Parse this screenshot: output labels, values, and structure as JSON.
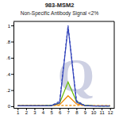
{
  "chart_data": {
    "type": "line",
    "title": "983-MSM2",
    "subtitle": "Non-Specific Antibody Signal <2%",
    "annotations": [
      {
        "text": "Q",
        "color": "#cdd0e3"
      }
    ],
    "x": [
      1,
      2,
      3,
      4,
      5,
      6,
      7,
      8,
      9,
      10,
      11,
      12
    ],
    "xlim": [
      0.5,
      12.5
    ],
    "xticks": [
      1,
      2,
      3,
      4,
      5,
      6,
      7,
      8,
      9,
      10,
      11,
      12
    ],
    "ylim": [
      -0.02,
      1.05
    ],
    "yticks": [
      0,
      {
        "value": 0.2,
        "label": ".2"
      },
      {
        "value": 0.4,
        "label": ".4"
      },
      {
        "value": 0.6,
        "label": ".6"
      },
      {
        "value": 0.8,
        "label": ".8"
      },
      1
    ],
    "grid": false,
    "series": [
      {
        "color": "#3344bb",
        "line_style": "dashed",
        "values": [
          0.005,
          0.005,
          0.005,
          0.005,
          0.01,
          0.06,
          1.0,
          0.07,
          0.01,
          0.005,
          0.003,
          0.003
        ]
      },
      {
        "color": "#3344bb",
        "line_style": "solid",
        "values": [
          0.005,
          0.005,
          0.005,
          0.005,
          0.008,
          0.04,
          0.98,
          0.05,
          0.008,
          0.004,
          0.003,
          0.003
        ]
      },
      {
        "color": "#66bb00",
        "line_style": "solid",
        "values": [
          0.005,
          0.005,
          0.005,
          0.005,
          0.01,
          0.04,
          0.3,
          0.06,
          0.01,
          0.005,
          0.003,
          0.003
        ]
      },
      {
        "color": "#ee8800",
        "line_style": "solid",
        "values": [
          0.008,
          0.008,
          0.008,
          0.008,
          0.01,
          0.02,
          0.13,
          0.03,
          0.01,
          0.006,
          0.005,
          0.005
        ]
      },
      {
        "color": "#ee8800",
        "line_style": "dashed",
        "values": [
          0.01,
          0.01,
          0.01,
          0.01,
          0.01,
          0.01,
          0.01,
          0.01,
          0.01,
          0.008,
          0.008,
          0.008
        ]
      }
    ]
  }
}
